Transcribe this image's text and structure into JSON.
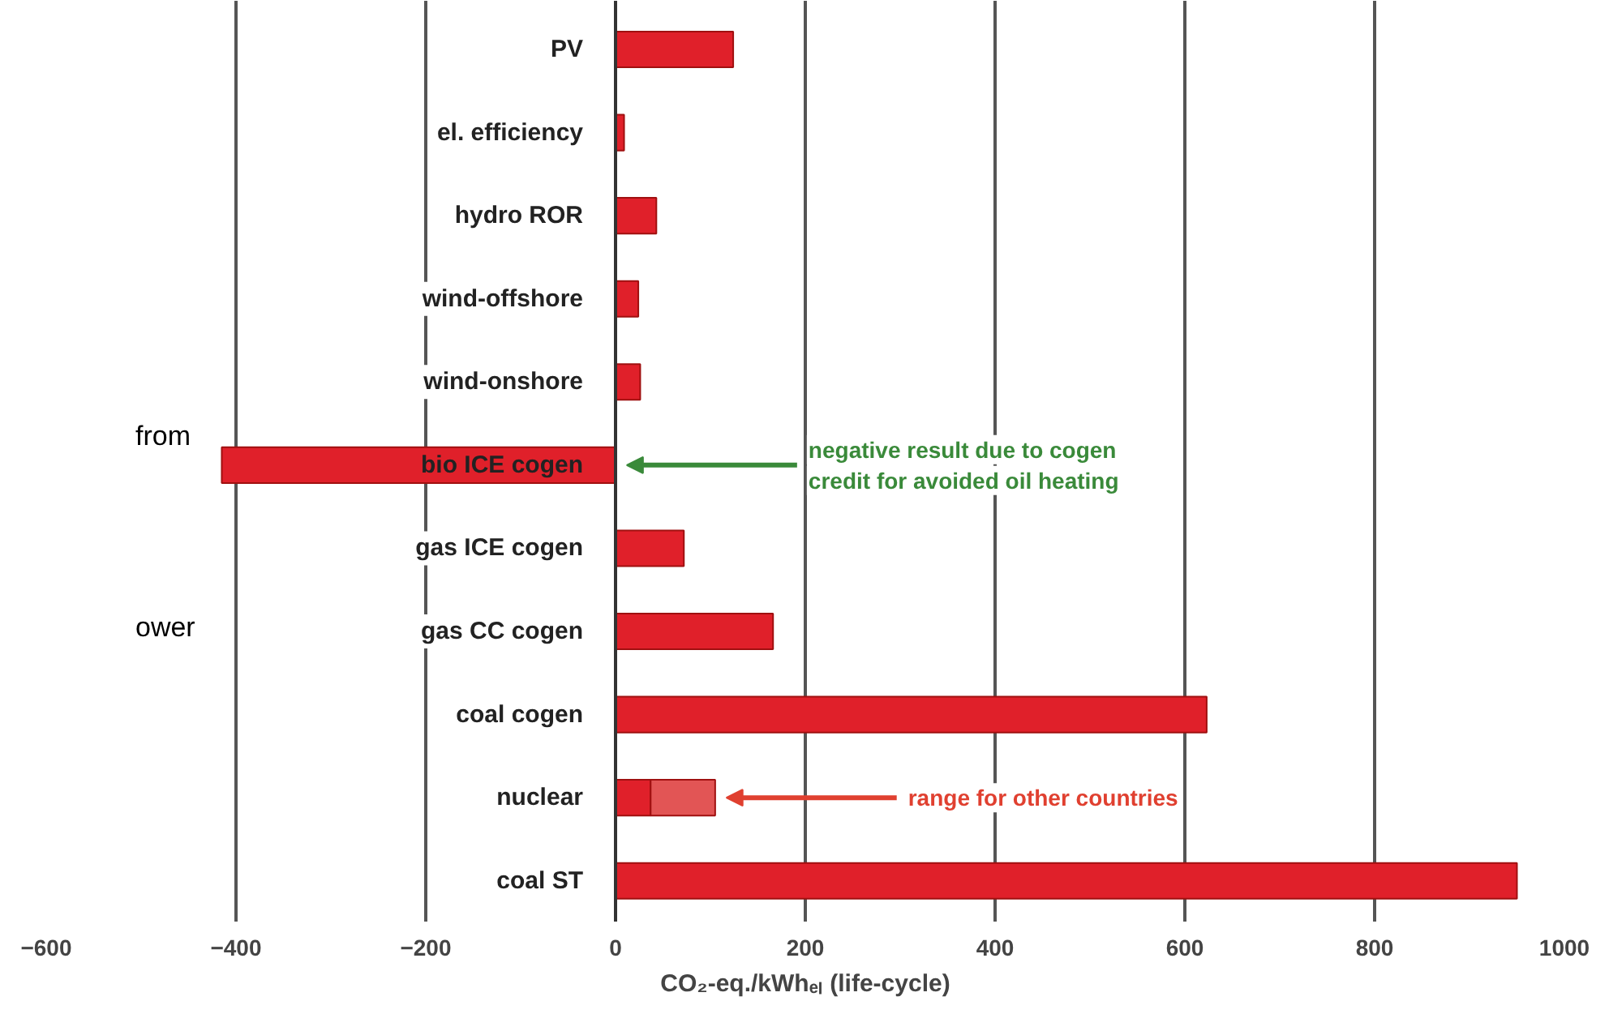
{
  "chart_data": {
    "type": "bar",
    "orientation": "horizontal",
    "stacked": true,
    "categories": [
      "PV",
      "el. efficiency",
      "hydro ROR",
      "wind-offshore",
      "wind-onshore",
      "bio ICE cogen",
      "gas ICE cogen",
      "gas CC cogen",
      "coal cogen",
      "nuclear",
      "coal ST"
    ],
    "series": [
      {
        "color": "#e0202a",
        "values": [
          124,
          9,
          43,
          24,
          26,
          -415,
          72,
          166,
          623,
          37,
          950
        ]
      },
      {
        "color": "#e25555",
        "values": [
          null,
          null,
          null,
          null,
          null,
          null,
          null,
          null,
          null,
          68,
          null
        ]
      }
    ],
    "xlabel": "CO₂-eq./kWhₑₗ (life-cycle)",
    "xlim": [
      -600,
      1000
    ],
    "xticks": [
      -600,
      -400,
      -200,
      0,
      200,
      400,
      600,
      800,
      1000
    ],
    "grid": "x",
    "annotations": [
      {
        "text": "negative result due to cogen\ncredit for avoided oil heating",
        "x": 5,
        "y": "bio ICE cogen"
      },
      {
        "text": "range for other countries",
        "x": 110,
        "y": "nuclear"
      },
      "from",
      "ower"
    ]
  }
}
